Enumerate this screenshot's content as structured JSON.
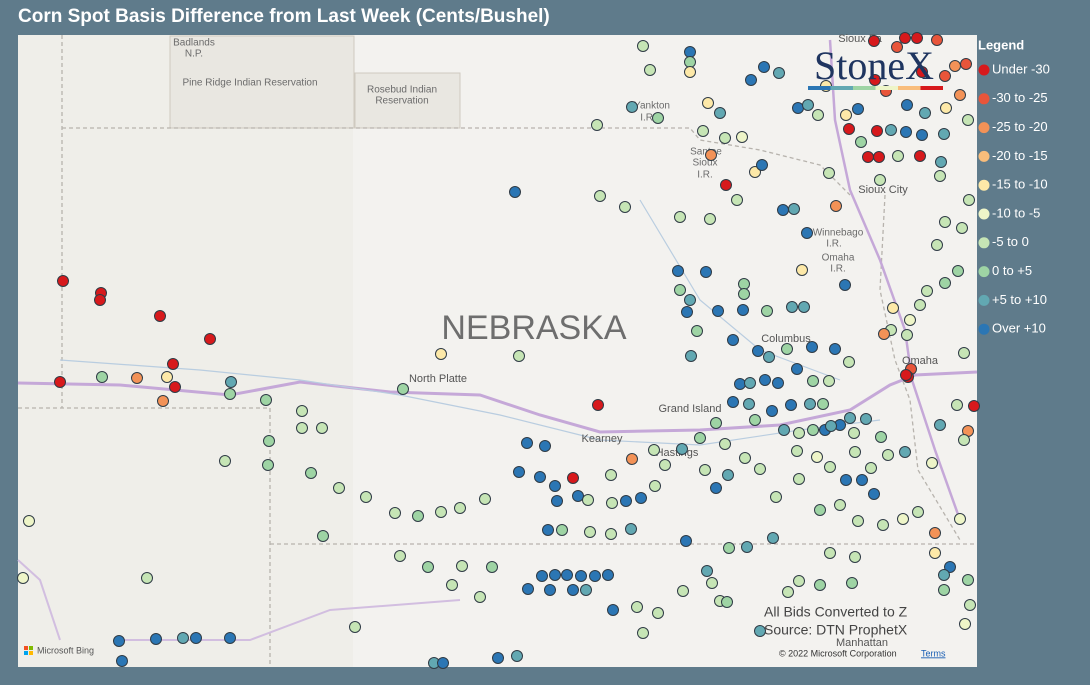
{
  "header": {
    "title": "Corn Spot Basis Difference from Last Week (Cents/Bushel)"
  },
  "legend": {
    "title": "Legend",
    "items": [
      {
        "label": "Under -30",
        "color": "#d7191c"
      },
      {
        "label": "-30 to -25",
        "color": "#e8553a"
      },
      {
        "label": "-25 to -20",
        "color": "#f39257"
      },
      {
        "label": "-20 to -15",
        "color": "#f9bd7b"
      },
      {
        "label": "-15 to -10",
        "color": "#fde9a8"
      },
      {
        "label": "-10 to -5",
        "color": "#eef5c8"
      },
      {
        "label": "-5 to 0",
        "color": "#c6e5b5"
      },
      {
        "label": "0 to +5",
        "color": "#9ed4a4"
      },
      {
        "label": "+5 to +10",
        "color": "#62a8b2"
      },
      {
        "label": "Over +10",
        "color": "#2b76b4"
      }
    ]
  },
  "map": {
    "state": "NEBRASKA",
    "places": [
      "Badlands",
      "N.P.",
      "Pine Ridge Indian Reservation",
      "Rosebud Indian",
      "Reservation",
      "Yankton",
      "I.R.",
      "Santee",
      "Sioux",
      "I.R.",
      "Sioux City",
      "Winnebago",
      "I.R.",
      "Omaha",
      "I.R.",
      "Columbus",
      "Omaha",
      "North Platte",
      "Grand Island",
      "Kearney",
      "Hastings",
      "Manhattan",
      "Sioux Fa"
    ],
    "notes": [
      "All Bids Converted to Z",
      "Source: DTN ProphetX"
    ],
    "logo": "StoneX",
    "provider": "Microsoft Bing",
    "copyright": "© 2022 Microsoft Corporation",
    "terms": "Terms"
  }
}
